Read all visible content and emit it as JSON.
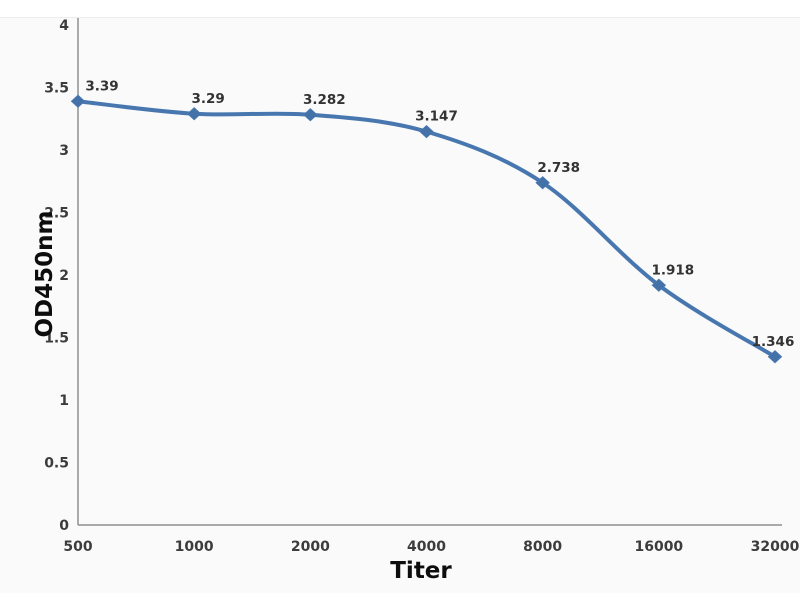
{
  "chart_data": {
    "type": "line",
    "title": "",
    "xlabel": "Titer",
    "ylabel": "OD450nm",
    "categories": [
      "500",
      "1000",
      "2000",
      "4000",
      "8000",
      "16000",
      "32000"
    ],
    "x": [
      500,
      1000,
      2000,
      4000,
      8000,
      16000,
      32000
    ],
    "series": [
      {
        "name": "OD450nm",
        "values": [
          3.39,
          3.29,
          3.282,
          3.147,
          2.738,
          1.918,
          1.346
        ],
        "point_labels": [
          "3.39",
          "3.29",
          "3.282",
          "3.147",
          "2.738",
          "1.918",
          "1.346"
        ]
      }
    ],
    "ylim": [
      0,
      4
    ],
    "ytick_step": 0.5,
    "yticks": [
      "0",
      "0.5",
      "1",
      "1.5",
      "2",
      "2.5",
      "3",
      "3.5",
      "4"
    ],
    "x_scale": "log-categorical",
    "grid": false,
    "legend_position": "none",
    "marker": "diamond",
    "colors": {
      "line": "#4877af",
      "marker": "#4371a8",
      "axis": "#8f8f8f",
      "tick_text": "#3c3c3c",
      "label_text": "#333333",
      "plot_background": "#fafafa",
      "page_background": "#ffffff"
    }
  }
}
